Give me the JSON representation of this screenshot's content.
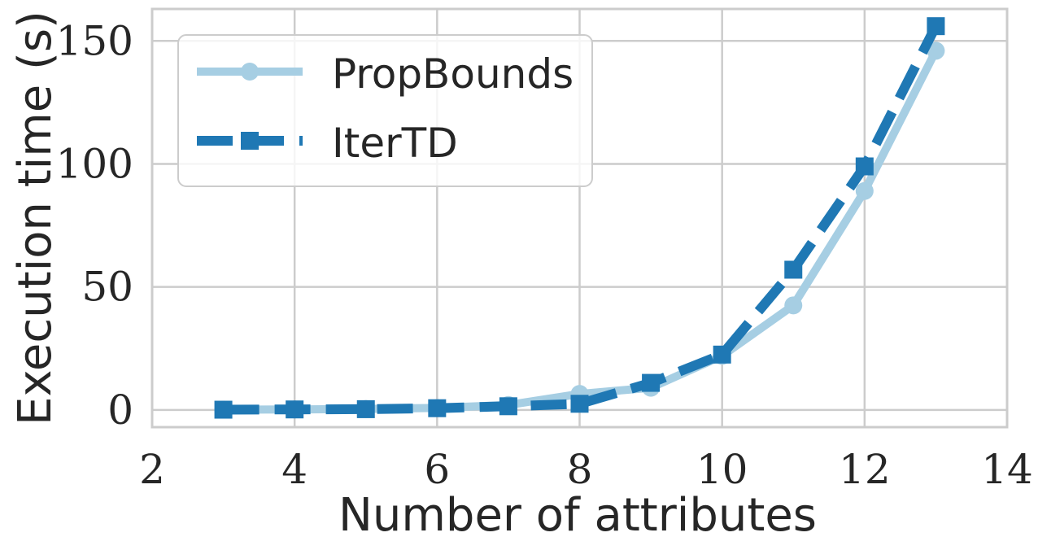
{
  "chart_data": {
    "type": "line",
    "title": "",
    "xlabel": "Number of attributes",
    "ylabel": "Execution time (s)",
    "xlim": [
      2,
      14
    ],
    "ylim": [
      -7,
      163
    ],
    "x_ticks": [
      "2",
      "4",
      "6",
      "8",
      "10",
      "12",
      "14"
    ],
    "y_ticks": [
      "0",
      "50",
      "100",
      "150"
    ],
    "grid": true,
    "legend_position": "top-left",
    "x": [
      3,
      4,
      5,
      6,
      7,
      8,
      9,
      10,
      11,
      12,
      13
    ],
    "series": [
      {
        "name": "PropBounds",
        "values": [
          0.1,
          0.2,
          0.4,
          0.8,
          2.0,
          6.5,
          9.0,
          22.0,
          42.5,
          89.0,
          146.0
        ],
        "color": "#a6cee3",
        "marker": "circle",
        "line_style": "solid"
      },
      {
        "name": "IterTD",
        "values": [
          0.1,
          0.2,
          0.3,
          0.7,
          1.5,
          2.5,
          11.0,
          22.5,
          57.0,
          99.0,
          156.0
        ],
        "color": "#1f78b4",
        "marker": "square",
        "line_style": "dashed"
      }
    ]
  }
}
